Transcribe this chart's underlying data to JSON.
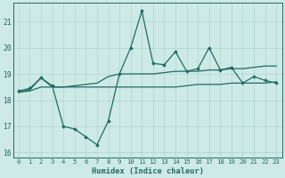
{
  "x": [
    0,
    1,
    2,
    3,
    4,
    5,
    6,
    7,
    8,
    9,
    10,
    11,
    12,
    13,
    14,
    15,
    16,
    17,
    18,
    19,
    20,
    21,
    22,
    23
  ],
  "line_jagged": [
    18.35,
    18.45,
    18.85,
    18.55,
    17.0,
    16.9,
    16.6,
    16.3,
    17.2,
    19.0,
    20.0,
    21.4,
    19.4,
    19.35,
    19.85,
    19.1,
    19.2,
    20.0,
    19.15,
    19.25,
    18.65,
    18.9,
    18.75,
    18.65
  ],
  "line_top": [
    18.3,
    18.4,
    18.85,
    18.5,
    18.5,
    18.55,
    18.6,
    18.65,
    18.9,
    19.0,
    19.0,
    19.0,
    19.0,
    19.05,
    19.1,
    19.1,
    19.1,
    19.15,
    19.15,
    19.2,
    19.2,
    19.25,
    19.3,
    19.3
  ],
  "line_bottom": [
    18.3,
    18.35,
    18.5,
    18.5,
    18.5,
    18.5,
    18.5,
    18.5,
    18.5,
    18.5,
    18.5,
    18.5,
    18.5,
    18.5,
    18.5,
    18.55,
    18.6,
    18.6,
    18.6,
    18.65,
    18.65,
    18.65,
    18.65,
    18.7
  ],
  "bg_color": "#ceeae6",
  "line_color": "#1f6b60",
  "grid_color": "#b0d5cf",
  "xlabel": "Humidex (Indice chaleur)",
  "ylim": [
    15.8,
    21.7
  ],
  "xlim": [
    -0.5,
    23.5
  ],
  "yticks": [
    16,
    17,
    18,
    19,
    20,
    21
  ],
  "xticks": [
    0,
    1,
    2,
    3,
    4,
    5,
    6,
    7,
    8,
    9,
    10,
    11,
    12,
    13,
    14,
    15,
    16,
    17,
    18,
    19,
    20,
    21,
    22,
    23
  ]
}
